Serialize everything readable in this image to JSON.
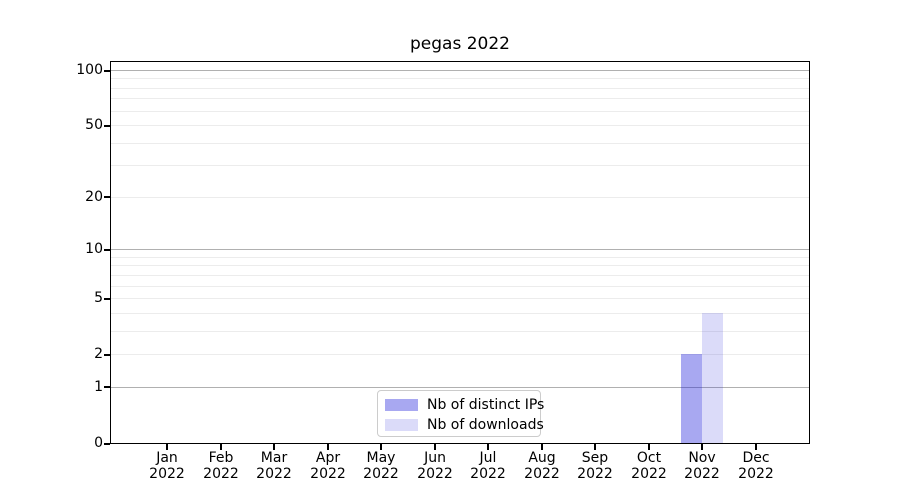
{
  "title": "pegas 2022",
  "chart_data": {
    "type": "bar",
    "title": "pegas 2022",
    "yscale": "log1p",
    "ylim": [
      0,
      111
    ],
    "grid": true,
    "legend_position": "lower center",
    "yticks": [
      0,
      1,
      2,
      5,
      10,
      20,
      50,
      100
    ],
    "gridlines": {
      "major": [
        1,
        10,
        100
      ],
      "minor": [
        2,
        3,
        4,
        5,
        6,
        7,
        8,
        9,
        20,
        30,
        40,
        50,
        60,
        70,
        80,
        90
      ]
    },
    "categories": [
      "Jan",
      "Feb",
      "Mar",
      "Apr",
      "May",
      "Jun",
      "Jul",
      "Aug",
      "Sep",
      "Oct",
      "Nov",
      "Dec"
    ],
    "year": "2022",
    "series": [
      {
        "name": "Nb of distinct IPs",
        "color": "rgba(30,30,220,0.39)",
        "solid_color": "#a8a8f4",
        "values": [
          0,
          0,
          0,
          0,
          0,
          0,
          0,
          0,
          0,
          0,
          2,
          0
        ]
      },
      {
        "name": "Nb of downloads",
        "color": "rgba(30,30,220,0.16)",
        "solid_color": "#dcdcf9",
        "values": [
          0,
          0,
          0,
          0,
          0,
          0,
          0,
          0,
          0,
          0,
          4,
          0
        ]
      }
    ]
  },
  "colors": {
    "background": "#ffffff",
    "axis": "#000000",
    "grid_major": "#b0b0b0",
    "grid_minor": "#ececec",
    "legend_border": "#cccccc",
    "text": "#000000"
  }
}
